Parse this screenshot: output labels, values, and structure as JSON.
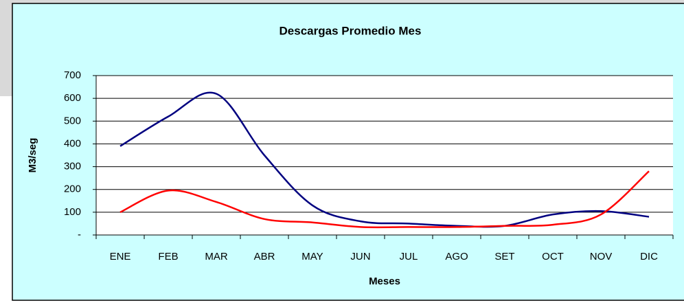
{
  "chart_data": {
    "type": "line",
    "title": "Descargas Promedio Mes",
    "xlabel": "Meses",
    "ylabel": "M3/seg",
    "categories": [
      "ENE",
      "FEB",
      "MAR",
      "ABR",
      "MAY",
      "JUN",
      "JUL",
      "AGO",
      "SET",
      "OCT",
      "NOV",
      "DIC"
    ],
    "series": [
      {
        "color": "#000080",
        "values": [
          390,
          520,
          620,
          350,
          130,
          60,
          50,
          40,
          40,
          90,
          105,
          80
        ]
      },
      {
        "color": "#ff0000",
        "values": [
          100,
          195,
          145,
          70,
          55,
          35,
          35,
          35,
          40,
          45,
          90,
          280
        ]
      }
    ],
    "ylim": [
      0,
      700
    ],
    "yticks": [
      {
        "value": 0,
        "label": "-"
      },
      100,
      200,
      300,
      400,
      500,
      600,
      700
    ],
    "grid": true
  }
}
